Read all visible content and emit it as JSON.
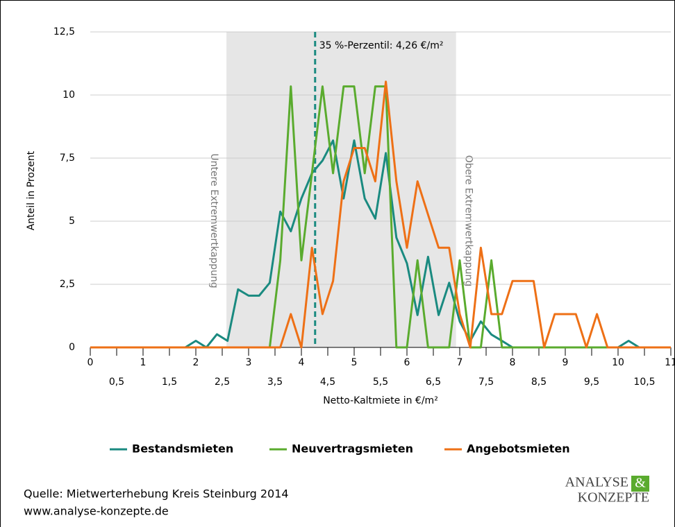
{
  "chart_data": {
    "type": "line",
    "ylabel": "Anteil in Prozent",
    "xlabel": "Netto-Kaltmiete in €/m²",
    "x": [
      0,
      0.2,
      0.4,
      0.6,
      0.8,
      1,
      1.2,
      1.4,
      1.6,
      1.8,
      2,
      2.2,
      2.4,
      2.6,
      2.8,
      3,
      3.2,
      3.4,
      3.6,
      3.8,
      4,
      4.2,
      4.4,
      4.6,
      4.8,
      5,
      5.2,
      5.4,
      5.6,
      5.8,
      6,
      6.2,
      6.4,
      6.6,
      6.8,
      7,
      7.2,
      7.4,
      7.6,
      7.8,
      8,
      8.2,
      8.4,
      8.6,
      8.8,
      9,
      9.2,
      9.4,
      9.6,
      9.8,
      10,
      10.2,
      10.4,
      10.6,
      10.8,
      11
    ],
    "series": [
      {
        "name": "Bestandsmieten",
        "color": "#1a8a80",
        "values": [
          0,
          0,
          0,
          0,
          0,
          0,
          0,
          0,
          0,
          0,
          0.26,
          0,
          0.52,
          0.26,
          2.3,
          2.05,
          2.05,
          2.56,
          5.38,
          4.6,
          5.9,
          6.9,
          7.4,
          8.2,
          5.9,
          8.2,
          5.9,
          5.1,
          7.7,
          4.35,
          3.33,
          1.28,
          3.59,
          1.28,
          2.56,
          1.03,
          0.26,
          1.03,
          0.51,
          0.26,
          0,
          0,
          0,
          0,
          0,
          0,
          0,
          0,
          0,
          0,
          0,
          0.26,
          0,
          0,
          0,
          0
        ]
      },
      {
        "name": "Neuvertragsmieten",
        "color": "#5aab2e",
        "values": [
          0,
          0,
          0,
          0,
          0,
          0,
          0,
          0,
          0,
          0,
          0,
          0,
          0,
          0,
          0,
          0,
          0,
          0,
          3.45,
          10.34,
          3.45,
          6.9,
          10.34,
          6.9,
          10.34,
          10.34,
          6.9,
          10.34,
          10.34,
          0,
          0,
          3.45,
          0,
          0,
          0,
          3.45,
          0,
          0,
          3.45,
          0,
          0,
          0,
          0,
          0,
          0,
          0,
          0,
          0,
          0,
          0,
          0,
          0,
          0,
          0,
          0,
          0
        ]
      },
      {
        "name": "Angebotsmieten",
        "color": "#ee7016",
        "values": [
          0,
          0,
          0,
          0,
          0,
          0,
          0,
          0,
          0,
          0,
          0,
          0,
          0,
          0,
          0,
          0,
          0,
          0,
          0,
          1.32,
          0,
          3.95,
          1.32,
          2.63,
          6.58,
          7.9,
          7.9,
          6.58,
          10.53,
          6.58,
          3.95,
          6.58,
          5.26,
          3.95,
          3.95,
          1.32,
          0,
          3.95,
          1.32,
          1.32,
          2.63,
          2.63,
          2.63,
          0,
          1.32,
          1.32,
          1.32,
          0,
          1.32,
          0,
          0,
          0,
          0,
          0,
          0,
          0
        ]
      }
    ],
    "xlim": [
      0,
      11
    ],
    "ylim": [
      0,
      12.5
    ],
    "xticks": [
      0,
      1,
      2,
      3,
      4,
      5,
      6,
      7,
      8,
      9,
      10,
      11
    ],
    "xticks_minor": [
      {
        "value": 0.5,
        "label": "0,5"
      },
      {
        "value": 1.5,
        "label": "1,5"
      },
      {
        "value": 2.5,
        "label": "2,5"
      },
      {
        "value": 3.5,
        "label": "3,5"
      },
      {
        "value": 4.5,
        "label": "4,5"
      },
      {
        "value": 5.5,
        "label": "5,5"
      },
      {
        "value": 6.5,
        "label": "6,5"
      },
      {
        "value": 7.5,
        "label": "7,5"
      },
      {
        "value": 8.5,
        "label": "8,5"
      },
      {
        "value": 9.5,
        "label": "9,5"
      },
      {
        "value": 10.5,
        "label": "10,5"
      }
    ],
    "yticks": [
      0,
      {
        "value": 2.5,
        "label": "2,5"
      },
      5,
      {
        "value": 7.5,
        "label": "7,5"
      },
      10,
      {
        "value": 12.5,
        "label": "12,5"
      }
    ],
    "grid": true,
    "band": {
      "x": [
        2.58,
        6.93
      ],
      "color": "#e6e6e6",
      "left_label": "Untere Extremwertkappung",
      "right_label": "Obere Extremwertkappung"
    },
    "vline": {
      "x": 4.26,
      "label": "35 %-Perzentil: 4,26 €/m²",
      "color": "#1a8a80"
    },
    "legend": "bottom"
  },
  "source": [
    "Quelle: Mietwerterhebung Kreis Steinburg 2014",
    "www.analyse-konzepte.de"
  ],
  "logo": {
    "line1": "ANALYSE",
    "amp": "&",
    "line2": "KONZEPTE"
  }
}
